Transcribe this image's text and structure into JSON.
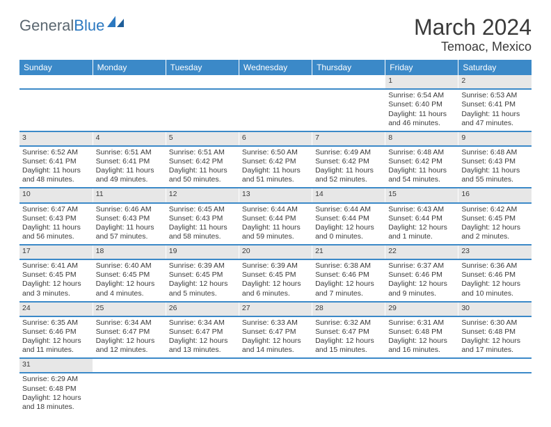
{
  "logo": {
    "part1": "General",
    "part2": "Blue"
  },
  "title": "March 2024",
  "location": "Temoac, Mexico",
  "colors": {
    "header_bg": "#3b89c8",
    "header_fg": "#ffffff",
    "daynum_bg": "#e7e7e7",
    "row_border": "#3b89c8",
    "logo_gray": "#5b6770",
    "logo_blue": "#2b78c0",
    "text": "#3a3a3a"
  },
  "daysOfWeek": [
    "Sunday",
    "Monday",
    "Tuesday",
    "Wednesday",
    "Thursday",
    "Friday",
    "Saturday"
  ],
  "weeks": [
    {
      "nums": [
        "",
        "",
        "",
        "",
        "",
        "1",
        "2"
      ],
      "cells": [
        [],
        [],
        [],
        [],
        [],
        [
          "Sunrise: 6:54 AM",
          "Sunset: 6:40 PM",
          "Daylight: 11 hours and 46 minutes."
        ],
        [
          "Sunrise: 6:53 AM",
          "Sunset: 6:41 PM",
          "Daylight: 11 hours and 47 minutes."
        ]
      ]
    },
    {
      "nums": [
        "3",
        "4",
        "5",
        "6",
        "7",
        "8",
        "9"
      ],
      "cells": [
        [
          "Sunrise: 6:52 AM",
          "Sunset: 6:41 PM",
          "Daylight: 11 hours and 48 minutes."
        ],
        [
          "Sunrise: 6:51 AM",
          "Sunset: 6:41 PM",
          "Daylight: 11 hours and 49 minutes."
        ],
        [
          "Sunrise: 6:51 AM",
          "Sunset: 6:42 PM",
          "Daylight: 11 hours and 50 minutes."
        ],
        [
          "Sunrise: 6:50 AM",
          "Sunset: 6:42 PM",
          "Daylight: 11 hours and 51 minutes."
        ],
        [
          "Sunrise: 6:49 AM",
          "Sunset: 6:42 PM",
          "Daylight: 11 hours and 52 minutes."
        ],
        [
          "Sunrise: 6:48 AM",
          "Sunset: 6:42 PM",
          "Daylight: 11 hours and 54 minutes."
        ],
        [
          "Sunrise: 6:48 AM",
          "Sunset: 6:43 PM",
          "Daylight: 11 hours and 55 minutes."
        ]
      ]
    },
    {
      "nums": [
        "10",
        "11",
        "12",
        "13",
        "14",
        "15",
        "16"
      ],
      "cells": [
        [
          "Sunrise: 6:47 AM",
          "Sunset: 6:43 PM",
          "Daylight: 11 hours and 56 minutes."
        ],
        [
          "Sunrise: 6:46 AM",
          "Sunset: 6:43 PM",
          "Daylight: 11 hours and 57 minutes."
        ],
        [
          "Sunrise: 6:45 AM",
          "Sunset: 6:43 PM",
          "Daylight: 11 hours and 58 minutes."
        ],
        [
          "Sunrise: 6:44 AM",
          "Sunset: 6:44 PM",
          "Daylight: 11 hours and 59 minutes."
        ],
        [
          "Sunrise: 6:44 AM",
          "Sunset: 6:44 PM",
          "Daylight: 12 hours and 0 minutes."
        ],
        [
          "Sunrise: 6:43 AM",
          "Sunset: 6:44 PM",
          "Daylight: 12 hours and 1 minute."
        ],
        [
          "Sunrise: 6:42 AM",
          "Sunset: 6:45 PM",
          "Daylight: 12 hours and 2 minutes."
        ]
      ]
    },
    {
      "nums": [
        "17",
        "18",
        "19",
        "20",
        "21",
        "22",
        "23"
      ],
      "cells": [
        [
          "Sunrise: 6:41 AM",
          "Sunset: 6:45 PM",
          "Daylight: 12 hours and 3 minutes."
        ],
        [
          "Sunrise: 6:40 AM",
          "Sunset: 6:45 PM",
          "Daylight: 12 hours and 4 minutes."
        ],
        [
          "Sunrise: 6:39 AM",
          "Sunset: 6:45 PM",
          "Daylight: 12 hours and 5 minutes."
        ],
        [
          "Sunrise: 6:39 AM",
          "Sunset: 6:45 PM",
          "Daylight: 12 hours and 6 minutes."
        ],
        [
          "Sunrise: 6:38 AM",
          "Sunset: 6:46 PM",
          "Daylight: 12 hours and 7 minutes."
        ],
        [
          "Sunrise: 6:37 AM",
          "Sunset: 6:46 PM",
          "Daylight: 12 hours and 9 minutes."
        ],
        [
          "Sunrise: 6:36 AM",
          "Sunset: 6:46 PM",
          "Daylight: 12 hours and 10 minutes."
        ]
      ]
    },
    {
      "nums": [
        "24",
        "25",
        "26",
        "27",
        "28",
        "29",
        "30"
      ],
      "cells": [
        [
          "Sunrise: 6:35 AM",
          "Sunset: 6:46 PM",
          "Daylight: 12 hours and 11 minutes."
        ],
        [
          "Sunrise: 6:34 AM",
          "Sunset: 6:47 PM",
          "Daylight: 12 hours and 12 minutes."
        ],
        [
          "Sunrise: 6:34 AM",
          "Sunset: 6:47 PM",
          "Daylight: 12 hours and 13 minutes."
        ],
        [
          "Sunrise: 6:33 AM",
          "Sunset: 6:47 PM",
          "Daylight: 12 hours and 14 minutes."
        ],
        [
          "Sunrise: 6:32 AM",
          "Sunset: 6:47 PM",
          "Daylight: 12 hours and 15 minutes."
        ],
        [
          "Sunrise: 6:31 AM",
          "Sunset: 6:48 PM",
          "Daylight: 12 hours and 16 minutes."
        ],
        [
          "Sunrise: 6:30 AM",
          "Sunset: 6:48 PM",
          "Daylight: 12 hours and 17 minutes."
        ]
      ]
    },
    {
      "nums": [
        "31",
        "",
        "",
        "",
        "",
        "",
        ""
      ],
      "cells": [
        [
          "Sunrise: 6:29 AM",
          "Sunset: 6:48 PM",
          "Daylight: 12 hours and 18 minutes."
        ],
        [],
        [],
        [],
        [],
        [],
        []
      ]
    }
  ]
}
